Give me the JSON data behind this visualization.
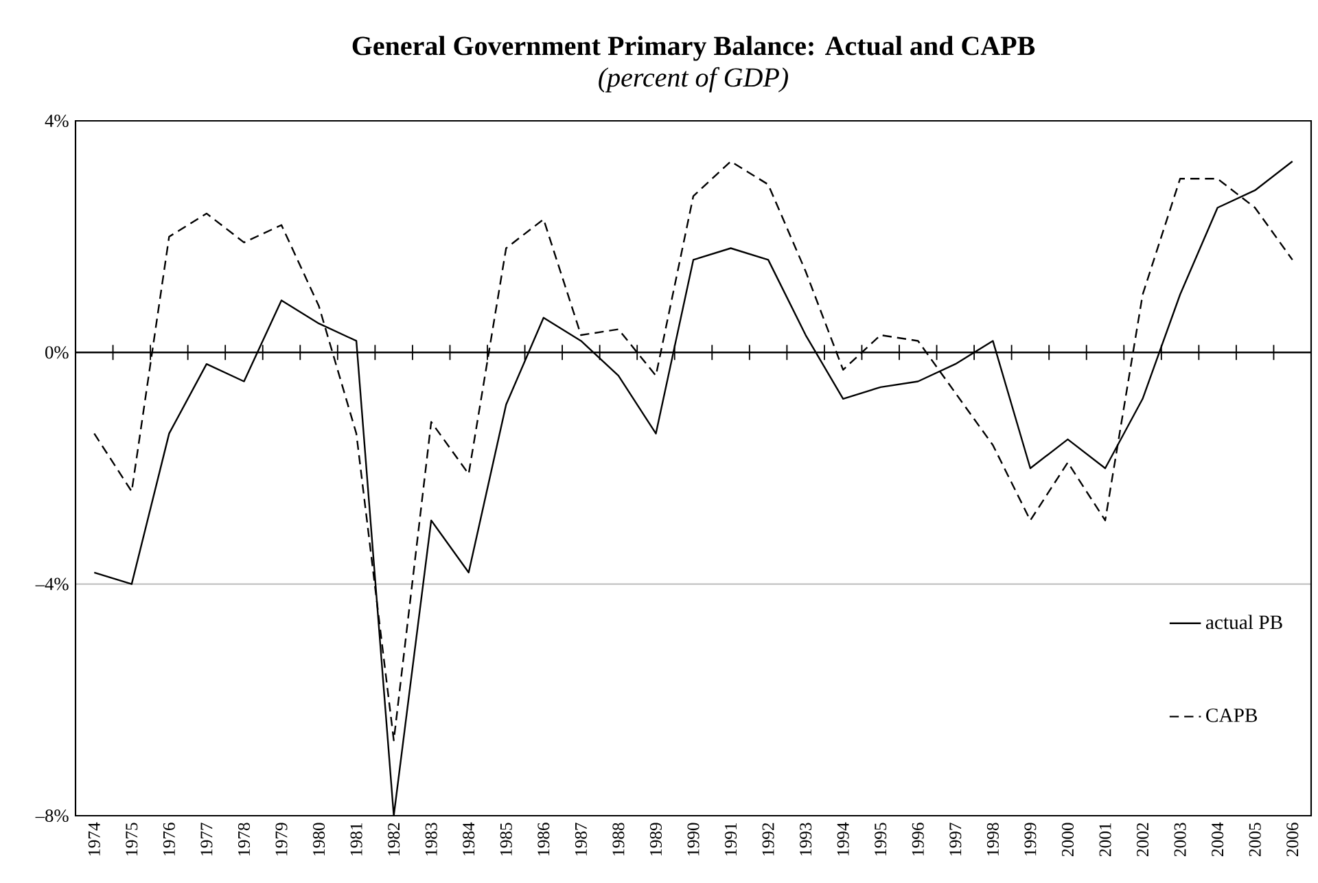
{
  "chart_data": {
    "type": "line",
    "title": "General Government Primary Balance: Actual and CAPB",
    "subtitle": "(percent of GDP)",
    "categories": [
      "1974",
      "1975",
      "1976",
      "1977",
      "1978",
      "1979",
      "1980",
      "1981",
      "1982",
      "1983",
      "1984",
      "1985",
      "1986",
      "1987",
      "1988",
      "1989",
      "1990",
      "1991",
      "1992",
      "1993",
      "1994",
      "1995",
      "1996",
      "1997",
      "1998",
      "1999",
      "2000",
      "2001",
      "2002",
      "2003",
      "2004",
      "2005",
      "2006"
    ],
    "series": [
      {
        "name": "actual PB",
        "color": "#000000",
        "line_style": "solid",
        "values": [
          -3.8,
          -4.0,
          -1.4,
          -0.2,
          -0.5,
          0.9,
          0.5,
          0.2,
          -8.0,
          -2.9,
          -3.8,
          -0.9,
          0.6,
          0.2,
          -0.4,
          -1.4,
          1.6,
          1.8,
          1.6,
          0.3,
          -0.8,
          -0.6,
          -0.5,
          -0.2,
          0.2,
          -2.0,
          -1.5,
          -2.0,
          -0.8,
          1.0,
          2.5,
          2.8,
          3.3
        ]
      },
      {
        "name": "CAPB",
        "color": "#000000",
        "line_style": "dashed",
        "values": [
          -1.4,
          -2.4,
          2.0,
          2.4,
          1.9,
          2.2,
          0.8,
          -1.4,
          -6.7,
          -1.2,
          -2.1,
          1.8,
          2.3,
          0.3,
          0.4,
          -0.4,
          2.7,
          3.3,
          2.9,
          1.4,
          -0.3,
          0.3,
          0.2,
          -0.7,
          -1.6,
          -2.9,
          -1.9,
          -2.9,
          1.0,
          3.0,
          3.0,
          2.5,
          1.6
        ]
      }
    ],
    "ylim": [
      -8,
      4
    ],
    "yticks": [
      {
        "value": -8,
        "label": "–8%"
      },
      {
        "value": -4,
        "label": "–4%"
      },
      {
        "value": 0,
        "label": "0%"
      },
      {
        "value": 4,
        "label": "4%"
      }
    ],
    "grid": "y",
    "legend": "bottom right"
  }
}
